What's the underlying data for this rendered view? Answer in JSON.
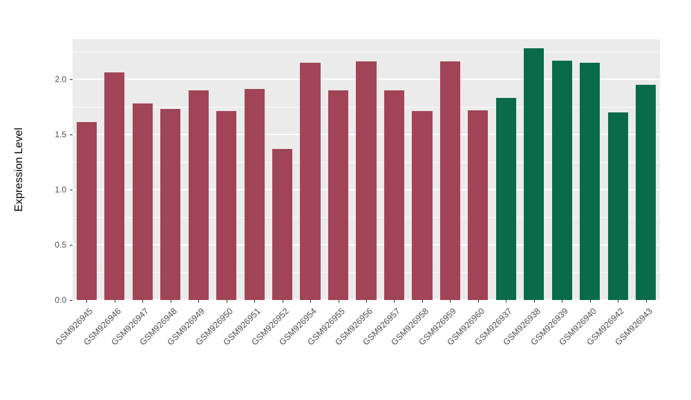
{
  "chart_data": {
    "type": "bar",
    "title": "",
    "xlabel": "",
    "ylabel": "Expression Level",
    "categories": [
      "GSM926945",
      "GSM926946",
      "GSM926947",
      "GSM926948",
      "GSM926949",
      "GSM926950",
      "GSM926951",
      "GSM926952",
      "GSM926954",
      "GSM926955",
      "GSM926956",
      "GSM926957",
      "GSM926958",
      "GSM926959",
      "GSM926960",
      "GSM926937",
      "GSM926938",
      "GSM926939",
      "GSM926940",
      "GSM926942",
      "GSM926943"
    ],
    "values": [
      1.61,
      2.06,
      1.78,
      1.73,
      1.9,
      1.71,
      1.91,
      1.37,
      2.15,
      1.9,
      2.16,
      1.9,
      1.71,
      2.16,
      1.72,
      1.83,
      2.28,
      2.17,
      2.15,
      1.7,
      1.95
    ],
    "bar_groups": [
      "a",
      "a",
      "a",
      "a",
      "a",
      "a",
      "a",
      "a",
      "a",
      "a",
      "a",
      "a",
      "a",
      "a",
      "a",
      "b",
      "b",
      "b",
      "b",
      "b",
      "b"
    ],
    "group_colors": {
      "a": "#A14458",
      "b": "#0A6B4A"
    },
    "ylim": [
      0,
      2.3625
    ],
    "yticks": [
      0.0,
      0.5,
      1.0,
      1.5,
      2.0
    ],
    "ytick_labels": [
      "0.0",
      "0.5",
      "1.0",
      "1.5",
      "2.0"
    ],
    "yticks_minor": [
      0.25,
      0.75,
      1.25,
      1.75,
      2.25
    ],
    "grid": "on",
    "legend": "none",
    "panel_bg": "#EBEBEB",
    "grid_color": "#FFFFFF",
    "tick_text_color": "#4D4D4D",
    "background": "#FFFFFF"
  }
}
